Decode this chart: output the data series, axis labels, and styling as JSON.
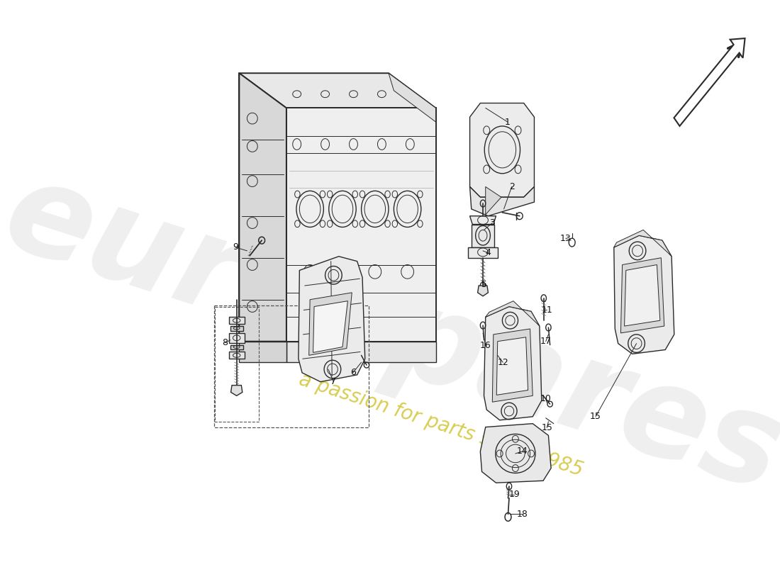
{
  "background_color": "#ffffff",
  "line_color": "#2a2a2a",
  "label_color": "#111111",
  "watermark1": "eurospares",
  "watermark2": "a passion for parts since 1985",
  "arrow_color": "#333333",
  "part_numbers": [
    1,
    2,
    3,
    4,
    5,
    6,
    7,
    8,
    9,
    10,
    11,
    12,
    13,
    14,
    15,
    16,
    17,
    18,
    19
  ],
  "lw_main": 1.0,
  "lw_thick": 1.4,
  "lw_thin": 0.7
}
